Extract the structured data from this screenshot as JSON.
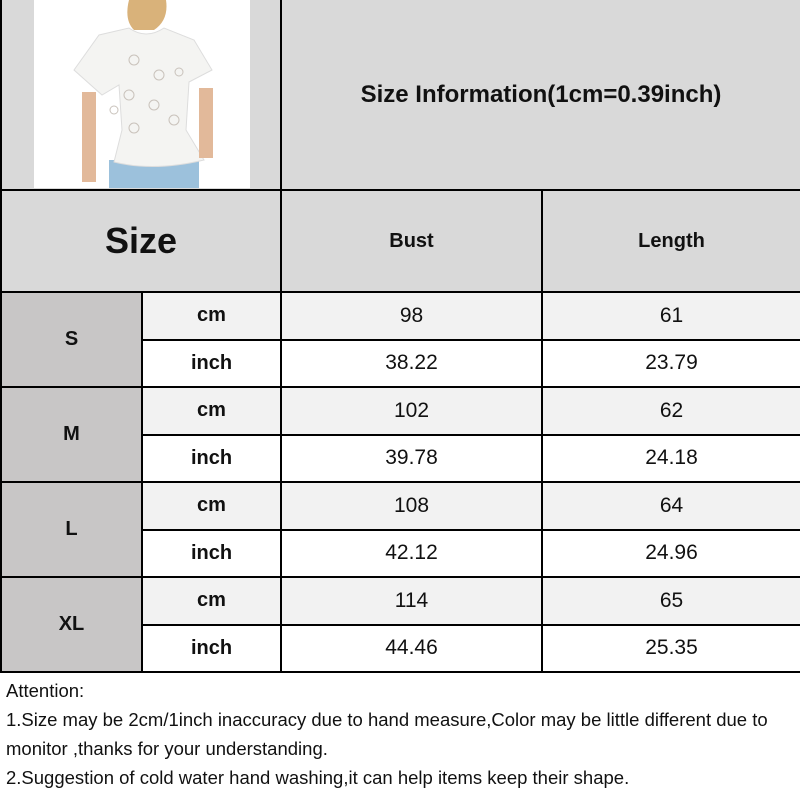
{
  "title": "Size Information(1cm=0.39inch)",
  "header": {
    "size": "Size",
    "bust": "Bust",
    "length": "Length"
  },
  "rows": [
    {
      "size": "S",
      "cm": {
        "unit": "cm",
        "bust": "98",
        "length": "61"
      },
      "inch": {
        "unit": "inch",
        "bust": "38.22",
        "length": "23.79"
      }
    },
    {
      "size": "M",
      "cm": {
        "unit": "cm",
        "bust": "102",
        "length": "62"
      },
      "inch": {
        "unit": "inch",
        "bust": "39.78",
        "length": "24.18"
      }
    },
    {
      "size": "L",
      "cm": {
        "unit": "cm",
        "bust": "108",
        "length": "64"
      },
      "inch": {
        "unit": "inch",
        "bust": "42.12",
        "length": "24.96"
      }
    },
    {
      "size": "XL",
      "cm": {
        "unit": "cm",
        "bust": "114",
        "length": "65"
      },
      "inch": {
        "unit": "inch",
        "bust": "44.46",
        "length": "25.35"
      }
    }
  ],
  "notes": {
    "heading": "Attention:",
    "line1": "1.Size may be 2cm/1inch inaccuracy due to hand measure,Color may be little different due to monitor ,thanks for your understanding.",
    "line2": "2.Suggestion of cold water hand washing,it can help items keep their shape."
  },
  "colors": {
    "header_bg": "#d9d9d9",
    "size_bg": "#c8c6c6",
    "cm_row_bg": "#f2f2f2"
  }
}
